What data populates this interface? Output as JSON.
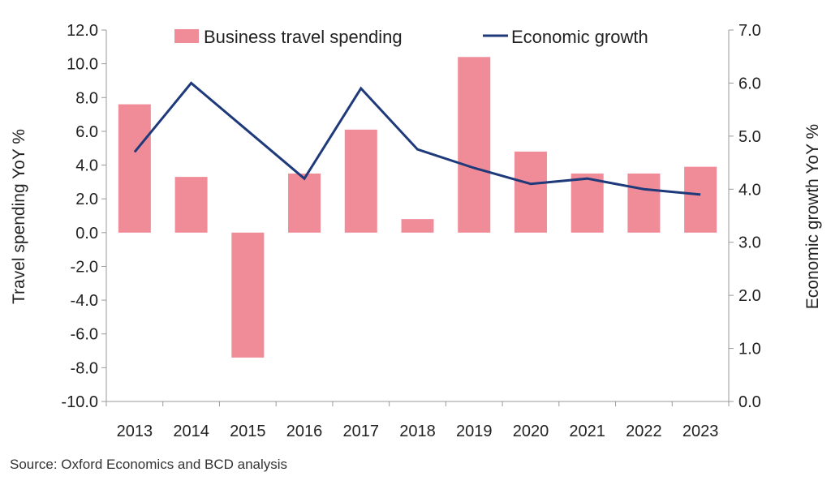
{
  "chart_data": {
    "type": "bar",
    "categories": [
      "2013",
      "2014",
      "2015",
      "2016",
      "2017",
      "2018",
      "2019",
      "2020",
      "2021",
      "2022",
      "2023"
    ],
    "series": [
      {
        "name": "Business travel spending",
        "type": "bar",
        "axis": "left",
        "color": "#f08c98",
        "values": [
          7.6,
          3.3,
          -7.4,
          3.5,
          6.1,
          0.8,
          10.4,
          4.8,
          3.5,
          3.5,
          3.9
        ]
      },
      {
        "name": "Economic growth",
        "type": "line",
        "axis": "right",
        "color": "#1f3a7a",
        "values": [
          4.7,
          6.0,
          5.1,
          4.2,
          5.9,
          4.75,
          4.4,
          4.1,
          4.2,
          4.0,
          3.9
        ]
      }
    ],
    "ylabel": "Travel spending YoY %",
    "y2label": "Economic growth YoY %",
    "ylim": [
      -10,
      12
    ],
    "y2lim": [
      0,
      7
    ],
    "yticks": [
      "-10.0",
      "-8.0",
      "-6.0",
      "-4.0",
      "-2.0",
      "0.0",
      "2.0",
      "4.0",
      "6.0",
      "8.0",
      "10.0",
      "12.0"
    ],
    "y2ticks": [
      "0.0",
      "1.0",
      "2.0",
      "3.0",
      "4.0",
      "5.0",
      "6.0",
      "7.0"
    ],
    "grid": false,
    "legend_position": "top"
  },
  "source": "Source: Oxford Economics and BCD analysis"
}
